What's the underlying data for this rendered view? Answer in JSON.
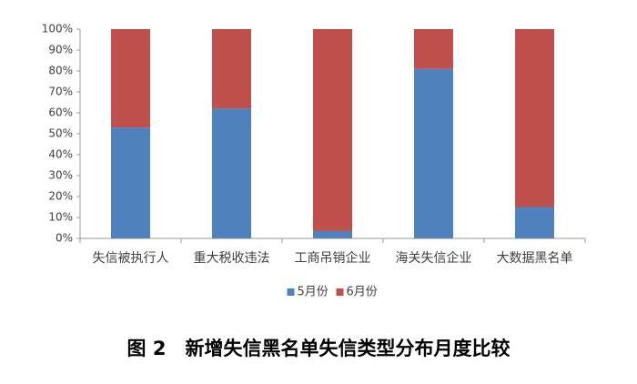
{
  "chart_data": {
    "type": "stacked_bar_percent",
    "title": "图 2　新增失信黑名单失信类型分布月度比较",
    "categories": [
      "失信被执行人",
      "重大税收违法",
      "工商吊销企业",
      "海关失信企业",
      "大数据黑名单"
    ],
    "series": [
      {
        "name": "5月份",
        "color": "#4f81bd",
        "values": [
          53,
          62,
          3.5,
          81,
          15
        ]
      },
      {
        "name": "6月份",
        "color": "#c0504d",
        "values": [
          47,
          38,
          96.5,
          19,
          85
        ]
      }
    ],
    "ylim": [
      0,
      100
    ],
    "yticks": [
      {
        "value": 0,
        "label": "0%"
      },
      {
        "value": 10,
        "label": "10%"
      },
      {
        "value": 20,
        "label": "20%"
      },
      {
        "value": 30,
        "label": "30%"
      },
      {
        "value": 40,
        "label": "40%"
      },
      {
        "value": 50,
        "label": "50%"
      },
      {
        "value": 60,
        "label": "60%"
      },
      {
        "value": 70,
        "label": "70%"
      },
      {
        "value": 80,
        "label": "80%"
      },
      {
        "value": 90,
        "label": "90%"
      },
      {
        "value": 100,
        "label": "100%"
      }
    ],
    "legend": "bottom"
  }
}
